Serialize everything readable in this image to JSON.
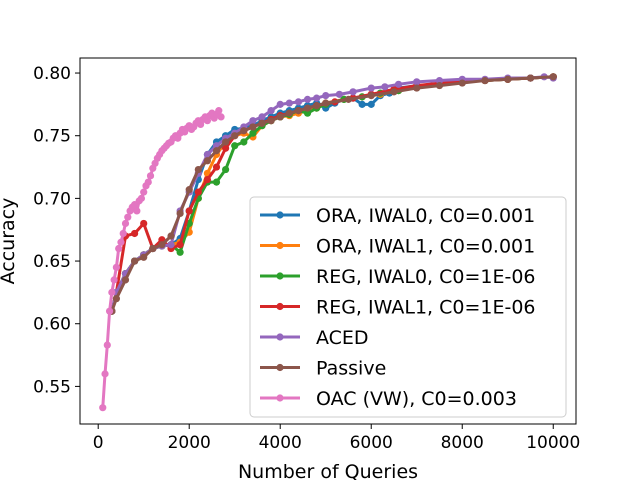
{
  "chart_data": {
    "type": "line",
    "title": "",
    "xlabel": "Number of Queries",
    "ylabel": "Accuracy",
    "xlim": [
      -400,
      10500
    ],
    "ylim": [
      0.52,
      0.812
    ],
    "xticks": [
      0,
      2000,
      4000,
      6000,
      8000,
      10000
    ],
    "xtick_labels": [
      "0",
      "2000",
      "4000",
      "6000",
      "8000",
      "10000"
    ],
    "yticks": [
      0.55,
      0.6,
      0.65,
      0.7,
      0.75,
      0.8
    ],
    "ytick_labels": [
      "0.55",
      "0.60",
      "0.65",
      "0.70",
      "0.75",
      "0.80"
    ],
    "grid": false,
    "legend_position": "lower-right",
    "series": [
      {
        "name": "ORA, IWAL0, C0=0.001",
        "color": "#1f77b4",
        "x": [
          300,
          400,
          600,
          800,
          1000,
          1200,
          1400,
          1600,
          1800,
          2000,
          2200,
          2400,
          2600,
          2800,
          3000,
          3200,
          3400,
          3600,
          3800,
          4000,
          4200,
          4400,
          4600,
          4800,
          5000,
          5200,
          5400,
          5600,
          5800,
          6000,
          6200,
          6400,
          6600,
          7000,
          7500,
          8000,
          8500,
          9000,
          9500,
          10000
        ],
        "y": [
          0.61,
          0.625,
          0.64,
          0.65,
          0.655,
          0.66,
          0.662,
          0.663,
          0.668,
          0.69,
          0.715,
          0.735,
          0.745,
          0.75,
          0.755,
          0.756,
          0.758,
          0.762,
          0.765,
          0.768,
          0.77,
          0.772,
          0.774,
          0.776,
          0.772,
          0.776,
          0.779,
          0.78,
          0.775,
          0.775,
          0.782,
          0.784,
          0.788,
          0.79,
          0.791,
          0.793,
          0.794,
          0.795,
          0.796,
          0.797
        ]
      },
      {
        "name": "ORA, IWAL1, C0=0.001",
        "color": "#ff7f0e",
        "x": [
          300,
          400,
          600,
          800,
          1000,
          1200,
          1400,
          1600,
          1800,
          2000,
          2200,
          2400,
          2600,
          2800,
          3000,
          3200,
          3400,
          3600,
          3800,
          4000,
          4200,
          4400,
          4600,
          4800,
          5000,
          5400,
          5800,
          6200,
          6600,
          7000,
          7500,
          8000,
          8500,
          9000,
          9500,
          10000
        ],
        "y": [
          0.61,
          0.625,
          0.64,
          0.65,
          0.655,
          0.66,
          0.662,
          0.663,
          0.665,
          0.673,
          0.7,
          0.72,
          0.735,
          0.745,
          0.75,
          0.752,
          0.749,
          0.758,
          0.762,
          0.765,
          0.766,
          0.768,
          0.77,
          0.772,
          0.776,
          0.779,
          0.781,
          0.783,
          0.786,
          0.789,
          0.791,
          0.793,
          0.794,
          0.795,
          0.796,
          0.797
        ]
      },
      {
        "name": "REG, IWAL0, C0=1E-06",
        "color": "#2ca02c",
        "x": [
          300,
          400,
          600,
          800,
          1000,
          1200,
          1400,
          1600,
          1800,
          2000,
          2200,
          2400,
          2600,
          2800,
          3000,
          3200,
          3400,
          3600,
          3800,
          4000,
          4200,
          4400,
          4600,
          4800,
          5000,
          5400,
          5800,
          6200,
          6600,
          7000,
          7500,
          8000,
          8500,
          9000,
          9500,
          10000
        ],
        "y": [
          0.61,
          0.625,
          0.64,
          0.65,
          0.655,
          0.66,
          0.662,
          0.663,
          0.657,
          0.68,
          0.7,
          0.713,
          0.713,
          0.723,
          0.742,
          0.745,
          0.752,
          0.758,
          0.762,
          0.765,
          0.767,
          0.77,
          0.768,
          0.772,
          0.775,
          0.779,
          0.781,
          0.784,
          0.786,
          0.789,
          0.791,
          0.793,
          0.794,
          0.795,
          0.796,
          0.797
        ]
      },
      {
        "name": "REG, IWAL1, C0=1E-06",
        "color": "#d62728",
        "x": [
          300,
          400,
          600,
          800,
          1000,
          1200,
          1400,
          1600,
          1800,
          2000,
          2200,
          2400,
          2600,
          2800,
          3000,
          3200,
          3400,
          3600,
          3800,
          4000,
          4400,
          4800,
          5200,
          5600,
          6000,
          6500,
          7000,
          7500,
          8000,
          8500,
          9000,
          9500,
          10000
        ],
        "y": [
          0.61,
          0.625,
          0.67,
          0.672,
          0.68,
          0.66,
          0.667,
          0.66,
          0.663,
          0.69,
          0.705,
          0.715,
          0.725,
          0.74,
          0.75,
          0.754,
          0.757,
          0.76,
          0.763,
          0.766,
          0.77,
          0.774,
          0.777,
          0.78,
          0.783,
          0.787,
          0.79,
          0.792,
          0.793,
          0.794,
          0.795,
          0.796,
          0.797
        ]
      },
      {
        "name": "ACED",
        "color": "#9467bd",
        "x": [
          300,
          400,
          600,
          800,
          1000,
          1200,
          1400,
          1600,
          1800,
          2000,
          2200,
          2400,
          2600,
          2800,
          3000,
          3200,
          3400,
          3600,
          3800,
          4000,
          4200,
          4400,
          4600,
          4800,
          5000,
          5300,
          5600,
          6000,
          6300,
          6600,
          7000,
          7500,
          8000,
          8500,
          9000,
          9500,
          9800,
          10000
        ],
        "y": [
          0.61,
          0.625,
          0.64,
          0.65,
          0.655,
          0.66,
          0.662,
          0.663,
          0.69,
          0.705,
          0.72,
          0.735,
          0.742,
          0.748,
          0.752,
          0.757,
          0.762,
          0.765,
          0.77,
          0.775,
          0.776,
          0.777,
          0.779,
          0.78,
          0.782,
          0.783,
          0.785,
          0.788,
          0.789,
          0.791,
          0.793,
          0.794,
          0.795,
          0.795,
          0.796,
          0.796,
          0.797,
          0.796
        ]
      },
      {
        "name": "Passive",
        "color": "#8c564b",
        "x": [
          300,
          400,
          600,
          800,
          1000,
          1200,
          1400,
          1600,
          1800,
          2000,
          2200,
          2400,
          2600,
          2800,
          3000,
          3200,
          3400,
          3600,
          3800,
          4000,
          4200,
          4400,
          4600,
          4800,
          5000,
          5500,
          6000,
          6500,
          7000,
          7500,
          8000,
          8500,
          9000,
          9500,
          10000
        ],
        "y": [
          0.61,
          0.62,
          0.635,
          0.65,
          0.653,
          0.66,
          0.663,
          0.67,
          0.688,
          0.707,
          0.723,
          0.73,
          0.738,
          0.745,
          0.75,
          0.754,
          0.757,
          0.76,
          0.762,
          0.765,
          0.768,
          0.77,
          0.772,
          0.774,
          0.776,
          0.779,
          0.782,
          0.785,
          0.788,
          0.79,
          0.792,
          0.794,
          0.795,
          0.796,
          0.797
        ]
      },
      {
        "name": "OAC (VW), C0=0.003",
        "color": "#e377c2",
        "x": [
          100,
          150,
          200,
          250,
          300,
          350,
          400,
          450,
          500,
          550,
          600,
          650,
          700,
          750,
          800,
          850,
          900,
          950,
          1000,
          1050,
          1100,
          1150,
          1200,
          1250,
          1300,
          1350,
          1400,
          1450,
          1500,
          1550,
          1600,
          1650,
          1700,
          1750,
          1800,
          1850,
          1900,
          1950,
          2000,
          2050,
          2100,
          2150,
          2200,
          2250,
          2300,
          2350,
          2400,
          2450,
          2500,
          2550,
          2600,
          2650,
          2700
        ],
        "y": [
          0.533,
          0.56,
          0.583,
          0.61,
          0.625,
          0.635,
          0.645,
          0.66,
          0.665,
          0.672,
          0.68,
          0.685,
          0.69,
          0.693,
          0.695,
          0.69,
          0.698,
          0.7,
          0.705,
          0.71,
          0.713,
          0.718,
          0.724,
          0.728,
          0.732,
          0.735,
          0.738,
          0.74,
          0.742,
          0.744,
          0.745,
          0.748,
          0.75,
          0.748,
          0.752,
          0.755,
          0.753,
          0.756,
          0.758,
          0.755,
          0.757,
          0.76,
          0.762,
          0.759,
          0.763,
          0.765,
          0.762,
          0.766,
          0.768,
          0.764,
          0.767,
          0.77,
          0.765
        ]
      }
    ]
  }
}
